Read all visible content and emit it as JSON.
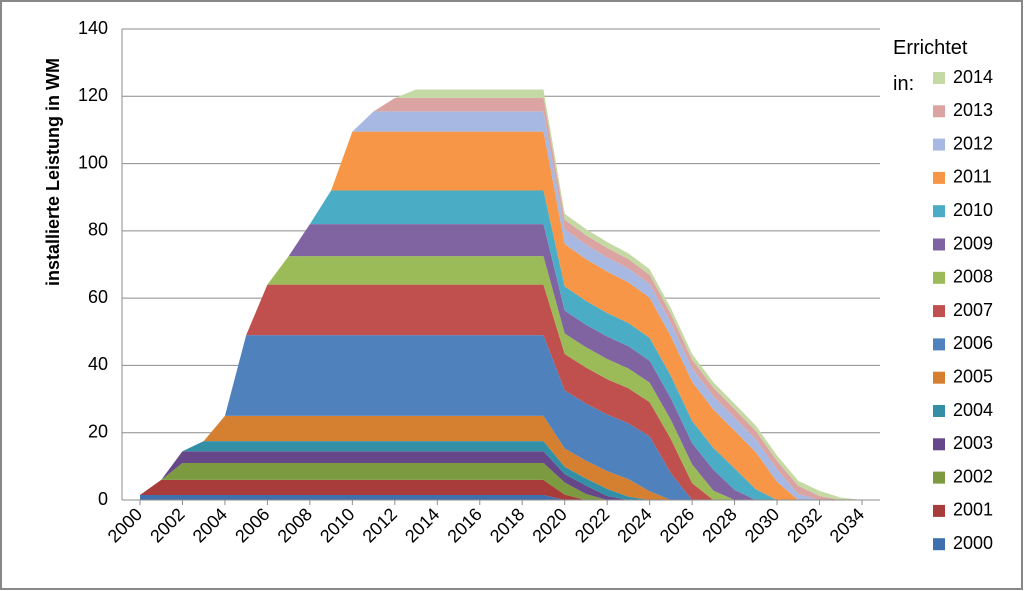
{
  "chart_data": {
    "type": "stacked-area",
    "y_label": "installierte Leistung in WM",
    "legend_title": "Errichtet in:",
    "legend_position": "right",
    "grid": true,
    "x": [
      2000,
      2001,
      2002,
      2003,
      2004,
      2005,
      2006,
      2007,
      2008,
      2009,
      2010,
      2011,
      2012,
      2013,
      2014,
      2015,
      2016,
      2017,
      2018,
      2019,
      2020,
      2021,
      2022,
      2023,
      2024,
      2025,
      2026,
      2027,
      2028,
      2029,
      2030,
      2031,
      2032,
      2033,
      2034
    ],
    "xlim": [
      2000,
      2034
    ],
    "xticks": [
      2000,
      2002,
      2004,
      2006,
      2008,
      2010,
      2012,
      2014,
      2016,
      2018,
      2020,
      2022,
      2024,
      2026,
      2028,
      2030,
      2032,
      2034
    ],
    "ylim": [
      0,
      140
    ],
    "yticks": [
      0,
      20,
      40,
      60,
      80,
      100,
      120,
      140
    ],
    "series": [
      {
        "name": "2000",
        "color": "#3e6faf",
        "values": [
          1.5,
          1.5,
          1.5,
          1.5,
          1.5,
          1.5,
          1.5,
          1.5,
          1.5,
          1.5,
          1.5,
          1.5,
          1.5,
          1.5,
          1.5,
          1.5,
          1.5,
          1.5,
          1.5,
          1.5,
          0,
          0,
          0,
          0,
          0,
          0,
          0,
          0,
          0,
          0,
          0,
          0,
          0,
          0,
          0
        ]
      },
      {
        "name": "2001",
        "color": "#a83c3a",
        "values": [
          0,
          4.5,
          4.5,
          4.5,
          4.5,
          4.5,
          4.5,
          4.5,
          4.5,
          4.5,
          4.5,
          4.5,
          4.5,
          4.5,
          4.5,
          4.5,
          4.5,
          4.5,
          4.5,
          4.5,
          1.6,
          0,
          0,
          0,
          0,
          0,
          0,
          0,
          0,
          0,
          0,
          0,
          0,
          0,
          0
        ]
      },
      {
        "name": "2002",
        "color": "#7c9a3f",
        "values": [
          0,
          0,
          5,
          5,
          5,
          5,
          5,
          5,
          5,
          5,
          5,
          5,
          5,
          5,
          5,
          5,
          5,
          5,
          5,
          5,
          3.6,
          1.8,
          0,
          0,
          0,
          0,
          0,
          0,
          0,
          0,
          0,
          0,
          0,
          0,
          0
        ]
      },
      {
        "name": "2003",
        "color": "#65478a",
        "values": [
          0,
          0,
          3.5,
          3.5,
          3.5,
          3.5,
          3.5,
          3.5,
          3.5,
          3.5,
          3.5,
          3.5,
          3.5,
          3.5,
          3.5,
          3.5,
          3.5,
          3.5,
          3.5,
          3.5,
          2.5,
          2.5,
          1.2,
          0,
          0,
          0,
          0,
          0,
          0,
          0,
          0,
          0,
          0,
          0,
          0
        ]
      },
      {
        "name": "2004",
        "color": "#338fa6",
        "values": [
          0,
          0,
          0,
          3,
          3,
          3,
          3,
          3,
          3,
          3,
          3,
          3,
          3,
          3,
          3,
          3,
          3,
          3,
          3,
          3,
          2.2,
          2.1,
          2.1,
          1.0,
          0,
          0,
          0,
          0,
          0,
          0,
          0,
          0,
          0,
          0,
          0
        ]
      },
      {
        "name": "2005",
        "color": "#d57f31",
        "values": [
          0,
          0,
          0,
          0,
          7.5,
          7.5,
          7.5,
          7.5,
          7.5,
          7.5,
          7.5,
          7.5,
          7.5,
          7.5,
          7.5,
          7.5,
          7.5,
          7.5,
          7.5,
          7.5,
          5.4,
          5.3,
          5.3,
          5.2,
          2.6,
          0,
          0,
          0,
          0,
          0,
          0,
          0,
          0,
          0,
          0
        ]
      },
      {
        "name": "2006",
        "color": "#4f81bd",
        "values": [
          0,
          0,
          0,
          0,
          0,
          24,
          24,
          24,
          24,
          24,
          24,
          24,
          24,
          24,
          24,
          24,
          24,
          24,
          24,
          24,
          17.3,
          17.0,
          16.8,
          16.6,
          16.3,
          8.0,
          0,
          0,
          0,
          0,
          0,
          0,
          0,
          0,
          0
        ]
      },
      {
        "name": "2007",
        "color": "#c0504d",
        "values": [
          0,
          0,
          0,
          0,
          0,
          0,
          15,
          15,
          15,
          15,
          15,
          15,
          15,
          15,
          15,
          15,
          15,
          15,
          15,
          15,
          10.8,
          10.7,
          10.5,
          10.4,
          10.2,
          10.1,
          5.0,
          0,
          0,
          0,
          0,
          0,
          0,
          0,
          0
        ]
      },
      {
        "name": "2008",
        "color": "#9bbb59",
        "values": [
          0,
          0,
          0,
          0,
          0,
          0,
          0,
          8.5,
          8.5,
          8.5,
          8.5,
          8.5,
          8.5,
          8.5,
          8.5,
          8.5,
          8.5,
          8.5,
          8.5,
          8.5,
          6.1,
          6.0,
          6.0,
          5.9,
          5.8,
          5.7,
          5.6,
          2.8,
          0,
          0,
          0,
          0,
          0,
          0,
          0
        ]
      },
      {
        "name": "2009",
        "color": "#8064a2",
        "values": [
          0,
          0,
          0,
          0,
          0,
          0,
          0,
          0,
          9.5,
          9.5,
          9.5,
          9.5,
          9.5,
          9.5,
          9.5,
          9.5,
          9.5,
          9.5,
          9.5,
          9.5,
          6.8,
          6.7,
          6.7,
          6.6,
          6.5,
          6.4,
          6.3,
          6.2,
          3.0,
          0,
          0,
          0,
          0,
          0,
          0
        ]
      },
      {
        "name": "2010",
        "color": "#4bacc6",
        "values": [
          0,
          0,
          0,
          0,
          0,
          0,
          0,
          0,
          0,
          10,
          10,
          10,
          10,
          10,
          10,
          10,
          10,
          10,
          10,
          10,
          7.2,
          7.1,
          7.0,
          6.9,
          6.8,
          6.7,
          6.6,
          6.5,
          6.4,
          3.2,
          0,
          0,
          0,
          0,
          0
        ]
      },
      {
        "name": "2011",
        "color": "#f79646",
        "values": [
          0,
          0,
          0,
          0,
          0,
          0,
          0,
          0,
          0,
          0,
          17.5,
          17.5,
          17.5,
          17.5,
          17.5,
          17.5,
          17.5,
          17.5,
          17.5,
          17.5,
          12.6,
          12.4,
          12.3,
          12.1,
          11.9,
          11.7,
          11.6,
          11.4,
          11.2,
          11.0,
          5.4,
          0,
          0,
          0,
          0
        ]
      },
      {
        "name": "2012",
        "color": "#a7b9e3",
        "values": [
          0,
          0,
          0,
          0,
          0,
          0,
          0,
          0,
          0,
          0,
          0,
          6,
          6,
          6,
          6,
          6,
          6,
          6,
          6,
          6,
          4.3,
          4.3,
          4.2,
          4.1,
          4.1,
          4.0,
          4.0,
          3.9,
          3.8,
          3.8,
          3.7,
          1.8,
          0,
          0,
          0
        ]
      },
      {
        "name": "2013",
        "color": "#dba3a2",
        "values": [
          0,
          0,
          0,
          0,
          0,
          0,
          0,
          0,
          0,
          0,
          0,
          0,
          4,
          4,
          4,
          4,
          4,
          4,
          4,
          4,
          2.9,
          2.8,
          2.8,
          2.8,
          2.7,
          2.7,
          2.6,
          2.6,
          2.6,
          2.5,
          2.5,
          2.4,
          1.2,
          0,
          0
        ]
      },
      {
        "name": "2014",
        "color": "#c4d9a3",
        "values": [
          0,
          0,
          0,
          0,
          0,
          0,
          0,
          0,
          0,
          0,
          0,
          0,
          0,
          2.5,
          2.5,
          2.5,
          2.5,
          2.5,
          2.5,
          2.5,
          1.8,
          1.8,
          1.8,
          1.7,
          1.7,
          1.7,
          1.7,
          1.6,
          1.6,
          1.6,
          1.6,
          1.5,
          1.5,
          0.7,
          0
        ]
      }
    ]
  }
}
